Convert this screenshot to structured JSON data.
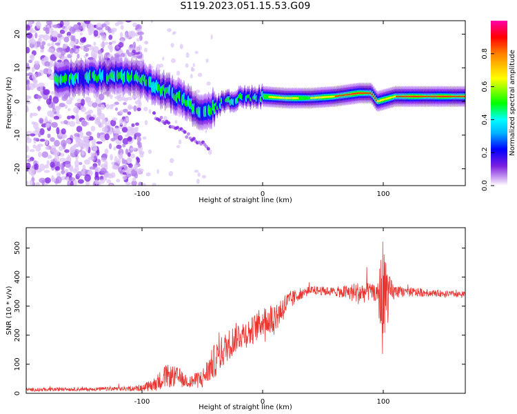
{
  "title": "S119.2023.051.15.53.G09",
  "chart_data": [
    {
      "type": "heatmap",
      "xlabel": "Height of straight line (km)",
      "ylabel": "Frequency (Hz)",
      "xlim": [
        -196,
        168
      ],
      "ylim": [
        -25,
        24
      ],
      "x_ticks": [
        -100,
        0,
        100
      ],
      "y_ticks": [
        -20,
        -10,
        0,
        10,
        20
      ],
      "colorbar": {
        "label": "Normalized spectral amplitude",
        "range": [
          0,
          1
        ],
        "ticks": [
          0.0,
          0.2,
          0.4,
          0.6,
          0.8
        ],
        "tick_labels": [
          "0.0",
          "0.2",
          "0.4",
          "0.6",
          "0.8"
        ],
        "colormap": [
          "#ffffff",
          "#7b1fe0",
          "#0000ff",
          "#00ffff",
          "#00ff00",
          "#ffff00",
          "#ff0000",
          "#ff00aa"
        ]
      },
      "ridge": {
        "x": [
          -170,
          -150,
          -130,
          -115,
          -100,
          -90,
          -80,
          -70,
          -60,
          -50,
          -45,
          -40,
          -30,
          -20,
          -10,
          0,
          20,
          40,
          60,
          80,
          90,
          95,
          100,
          110,
          140,
          168
        ],
        "y": [
          6.5,
          7,
          7.5,
          7.5,
          6.5,
          4.5,
          3,
          1.5,
          -1,
          -3.5,
          -3,
          -1.5,
          0,
          1,
          1.2,
          1.5,
          1,
          1,
          1.5,
          2.5,
          2.5,
          0,
          0.5,
          1.5,
          1.5,
          1.5
        ]
      },
      "grid": false
    },
    {
      "type": "line",
      "xlabel": "Height of straight line (km)",
      "ylabel": "SNR (10 * v/v)",
      "xlim": [
        -196,
        168
      ],
      "ylim": [
        0,
        570
      ],
      "x_ticks": [
        -100,
        0,
        100
      ],
      "y_ticks": [
        0,
        100,
        200,
        300,
        400,
        500
      ],
      "series": [
        {
          "color": "#e8332f",
          "trend_x": [
            -196,
            -160,
            -120,
            -100,
            -90,
            -80,
            -70,
            -60,
            -50,
            -40,
            -30,
            -20,
            -10,
            0,
            10,
            20,
            30,
            40,
            60,
            80,
            90,
            95,
            100,
            105,
            110,
            140,
            168
          ],
          "trend_y": [
            12,
            14,
            15,
            18,
            30,
            60,
            55,
            40,
            50,
            110,
            160,
            200,
            210,
            250,
            260,
            310,
            340,
            355,
            350,
            345,
            350,
            340,
            330,
            345,
            350,
            345,
            340
          ],
          "noise": [
            6,
            6,
            7,
            10,
            25,
            40,
            35,
            20,
            35,
            60,
            55,
            50,
            50,
            50,
            60,
            40,
            20,
            15,
            15,
            40,
            30,
            25,
            230,
            60,
            20,
            12,
            10
          ]
        }
      ],
      "grid": false
    }
  ]
}
